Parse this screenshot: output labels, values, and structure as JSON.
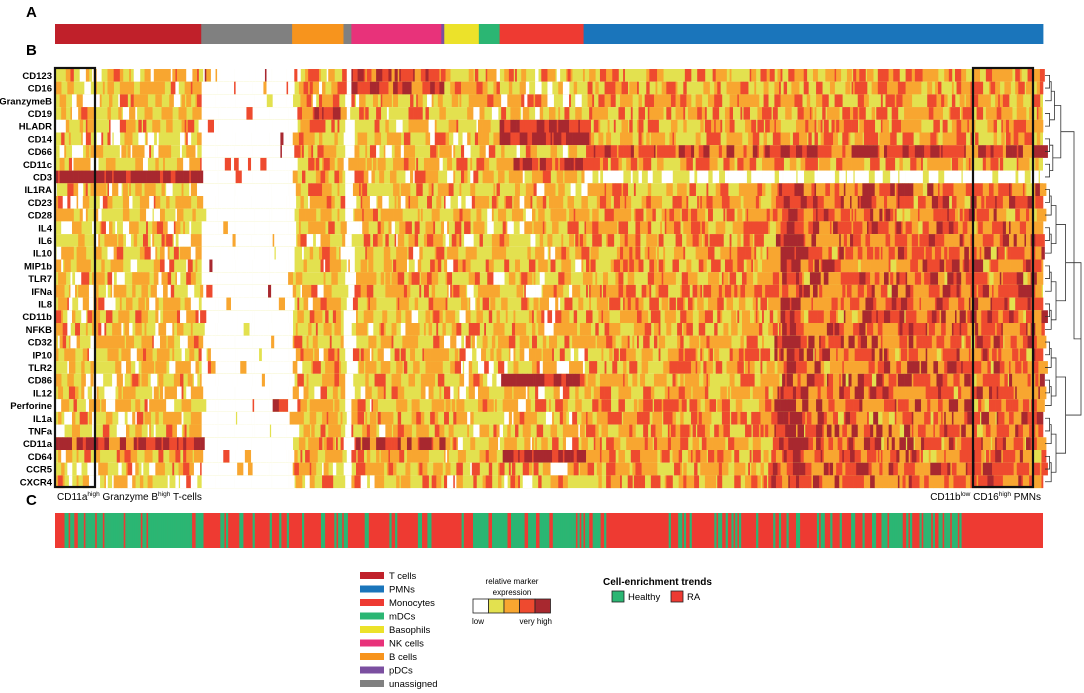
{
  "chart_data": {
    "type": "heatmap",
    "title": "",
    "panels": [
      "A",
      "B",
      "C"
    ],
    "rows": [
      "CD123",
      "CD16",
      "GranzymeB",
      "CD19",
      "HLADR",
      "CD14",
      "CD66",
      "CD11c",
      "CD3",
      "IL1RA",
      "CD23",
      "CD28",
      "IL4",
      "IL6",
      "IL10",
      "MIP1b",
      "TLR7",
      "IFNa",
      "IL8",
      "CD11b",
      "NFKB",
      "CD32",
      "IP10",
      "TLR2",
      "CD86",
      "IL12",
      "Perforine",
      "IL1a",
      "TNFa",
      "CD11a",
      "CD64",
      "CCR5",
      "CXCR4"
    ],
    "cell_type_segments": [
      {
        "label": "T cells",
        "fraction": 0.148
      },
      {
        "label": "unassigned",
        "fraction": 0.092
      },
      {
        "label": "B cells",
        "fraction": 0.052
      },
      {
        "label": "unassigned",
        "fraction": 0.008
      },
      {
        "label": "NK cells",
        "fraction": 0.091
      },
      {
        "label": "pDCs",
        "fraction": 0.003
      },
      {
        "label": "Basophils",
        "fraction": 0.035
      },
      {
        "label": "mDCs",
        "fraction": 0.021
      },
      {
        "label": "Monocytes",
        "fraction": 0.085
      },
      {
        "label": "PMNs",
        "fraction": 0.465
      }
    ],
    "expression_scale": {
      "title_line1": "relative marker",
      "title_line2": "expression",
      "low_label": "low",
      "high_label": "very high",
      "levels": 5
    },
    "highlight_boxes": [
      {
        "text_main_1": "CD11a",
        "sup_1": "high",
        "text_main_2": " Granzyme B",
        "sup_2": "high",
        "text_tail": " T-cells"
      },
      {
        "text_main_1": "CD11b",
        "sup_1": "low",
        "text_main_2": " CD16",
        "sup_2": "high",
        "text_tail": " PMNs"
      }
    ],
    "enrichment_trends": {
      "title": "Cell-enrichment trends",
      "items": [
        {
          "label": "Healthy",
          "color": "#2bb673"
        },
        {
          "label": "RA",
          "color": "#ee3a32"
        }
      ],
      "green_fraction_estimate": 0.3
    }
  },
  "legend_cell_types": [
    {
      "label": "T cells",
      "color": "#c0202a"
    },
    {
      "label": "PMNs",
      "color": "#1a75bb"
    },
    {
      "label": "Monocytes",
      "color": "#ee3a32"
    },
    {
      "label": "mDCs",
      "color": "#2bb673"
    },
    {
      "label": "Basophils",
      "color": "#ece22a"
    },
    {
      "label": "NK cells",
      "color": "#e8327a"
    },
    {
      "label": "B cells",
      "color": "#f7941d"
    },
    {
      "label": "pDCs",
      "color": "#7b4fa0"
    },
    {
      "label": "unassigned",
      "color": "#808080"
    }
  ],
  "heat_colors": [
    "#ffffff",
    "#e3e14f",
    "#f8a630",
    "#ee4a2f",
    "#a8282f"
  ]
}
